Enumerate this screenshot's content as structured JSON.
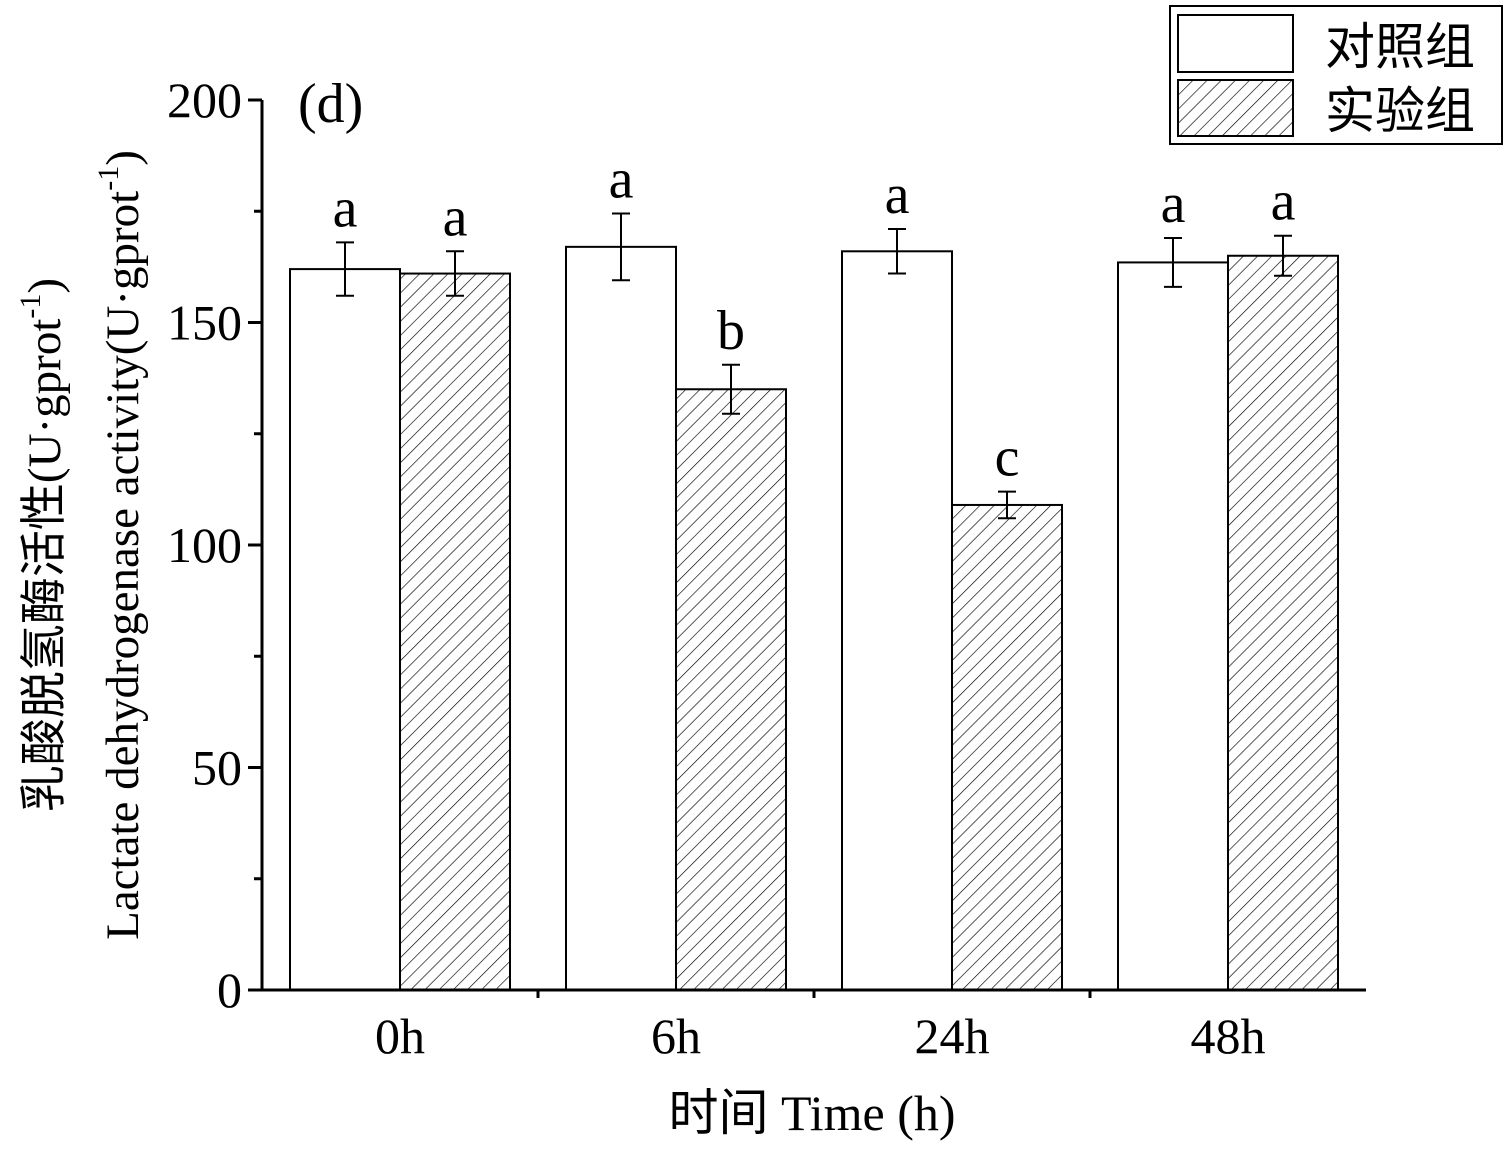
{
  "chart_data": {
    "type": "bar",
    "panel_label": "(d)",
    "categories": [
      "0h",
      "6h",
      "24h",
      "48h"
    ],
    "series": [
      {
        "name": "对照组",
        "pattern": "solid",
        "color": "#ffffff",
        "values": [
          162,
          167,
          166,
          163.5
        ],
        "errors": [
          6,
          7.5,
          5,
          5.5
        ],
        "letters": [
          "a",
          "a",
          "a",
          "a"
        ]
      },
      {
        "name": "实验组",
        "pattern": "hatch",
        "color": "#ffffff",
        "values": [
          161,
          135,
          109,
          165
        ],
        "errors": [
          5,
          5.5,
          3,
          4.5
        ],
        "letters": [
          "a",
          "b",
          "c",
          "a"
        ]
      }
    ],
    "xlabel": "时间 Time (h)",
    "ylabel": {
      "line1": "乳酸脱氢酶活性(U·gprot",
      "line2": "Lactate dehydrogenase activity(U·gprot",
      "superscript": "-1",
      "close": ")"
    },
    "ylim": [
      0,
      200
    ],
    "yticks": [
      0,
      50,
      100,
      150,
      200
    ],
    "yminor_step": 25,
    "grid": false,
    "legend_position": "top-right"
  }
}
